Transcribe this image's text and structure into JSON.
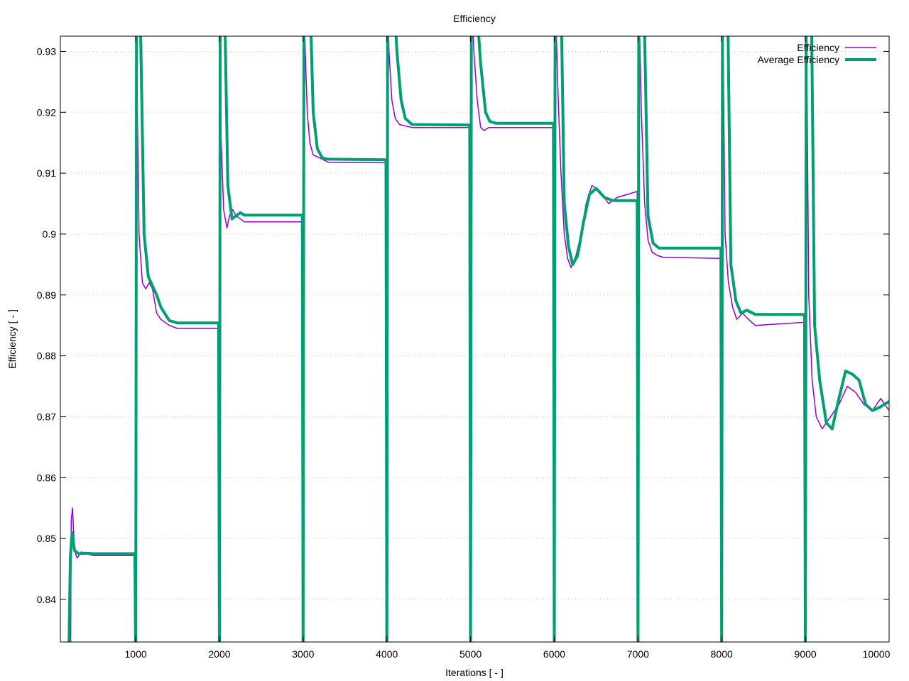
{
  "chart_data": {
    "type": "line",
    "title": "Efficiency",
    "xlabel": "Iterations [ - ]",
    "ylabel": "Efficiency [ - ]",
    "xlim": [
      100,
      10000
    ],
    "ylim": [
      0.833,
      0.9325
    ],
    "x_ticks": [
      {
        "value": 1000,
        "label": "1000"
      },
      {
        "value": 2000,
        "label": "2000"
      },
      {
        "value": 3000,
        "label": "3000"
      },
      {
        "value": 4000,
        "label": "4000"
      },
      {
        "value": 5000,
        "label": "5000"
      },
      {
        "value": 6000,
        "label": "6000"
      },
      {
        "value": 7000,
        "label": "7000"
      },
      {
        "value": 8000,
        "label": "8000"
      },
      {
        "value": 9000,
        "label": "9000"
      },
      {
        "value": 10000,
        "label": "10000"
      }
    ],
    "y_ticks": [
      {
        "value": 0.84,
        "label": "0.84"
      },
      {
        "value": 0.85,
        "label": "0.85"
      },
      {
        "value": 0.86,
        "label": "0.86"
      },
      {
        "value": 0.87,
        "label": "0.87"
      },
      {
        "value": 0.88,
        "label": "0.88"
      },
      {
        "value": 0.89,
        "label": "0.89"
      },
      {
        "value": 0.9,
        "label": "0.9"
      },
      {
        "value": 0.91,
        "label": "0.91"
      },
      {
        "value": 0.92,
        "label": "0.92"
      },
      {
        "value": 0.93,
        "label": "0.93"
      }
    ],
    "grid": true,
    "legend_position": "top-right",
    "series": [
      {
        "name": "Efficiency",
        "color": "#9400d3",
        "points": [
          [
            220,
            0.822
          ],
          [
            230,
            0.853
          ],
          [
            245,
            0.855
          ],
          [
            270,
            0.848
          ],
          [
            300,
            0.8468
          ],
          [
            350,
            0.8478
          ],
          [
            400,
            0.8475
          ],
          [
            500,
            0.8472
          ],
          [
            990,
            0.8472
          ],
          [
            1000,
            0.83
          ],
          [
            1008,
            0.945
          ],
          [
            1020,
            0.92
          ],
          [
            1040,
            0.9
          ],
          [
            1080,
            0.892
          ],
          [
            1120,
            0.891
          ],
          [
            1160,
            0.892
          ],
          [
            1200,
            0.891
          ],
          [
            1250,
            0.887
          ],
          [
            1300,
            0.886
          ],
          [
            1400,
            0.885
          ],
          [
            1500,
            0.8845
          ],
          [
            1990,
            0.8845
          ],
          [
            2000,
            0.84
          ],
          [
            2008,
            0.945
          ],
          [
            2020,
            0.916
          ],
          [
            2050,
            0.904
          ],
          [
            2090,
            0.901
          ],
          [
            2120,
            0.903
          ],
          [
            2160,
            0.904
          ],
          [
            2200,
            0.903
          ],
          [
            2300,
            0.902
          ],
          [
            2990,
            0.902
          ],
          [
            3000,
            0.835
          ],
          [
            3008,
            0.94
          ],
          [
            3025,
            0.93
          ],
          [
            3050,
            0.92
          ],
          [
            3080,
            0.915
          ],
          [
            3120,
            0.913
          ],
          [
            3200,
            0.9125
          ],
          [
            3300,
            0.9118
          ],
          [
            3990,
            0.9117
          ],
          [
            4000,
            0.86
          ],
          [
            4008,
            0.94
          ],
          [
            4025,
            0.93
          ],
          [
            4060,
            0.922
          ],
          [
            4100,
            0.919
          ],
          [
            4150,
            0.918
          ],
          [
            4300,
            0.9175
          ],
          [
            4990,
            0.9175
          ],
          [
            5000,
            0.862
          ],
          [
            5010,
            0.94
          ],
          [
            5040,
            0.93
          ],
          [
            5080,
            0.922
          ],
          [
            5120,
            0.9175
          ],
          [
            5160,
            0.917
          ],
          [
            5220,
            0.9175
          ],
          [
            5300,
            0.9175
          ],
          [
            5990,
            0.9175
          ],
          [
            6000,
            0.83
          ],
          [
            6010,
            0.94
          ],
          [
            6040,
            0.925
          ],
          [
            6080,
            0.91
          ],
          [
            6120,
            0.9
          ],
          [
            6160,
            0.896
          ],
          [
            6200,
            0.8945
          ],
          [
            6260,
            0.8965
          ],
          [
            6320,
            0.9
          ],
          [
            6380,
            0.905
          ],
          [
            6450,
            0.908
          ],
          [
            6550,
            0.907
          ],
          [
            6650,
            0.905
          ],
          [
            6750,
            0.906
          ],
          [
            6990,
            0.907
          ],
          [
            7000,
            0.872
          ],
          [
            7010,
            0.94
          ],
          [
            7040,
            0.92
          ],
          [
            7080,
            0.905
          ],
          [
            7120,
            0.899
          ],
          [
            7170,
            0.897
          ],
          [
            7230,
            0.8965
          ],
          [
            7300,
            0.8962
          ],
          [
            7990,
            0.896
          ],
          [
            8000,
            0.87
          ],
          [
            8010,
            0.94
          ],
          [
            8040,
            0.9
          ],
          [
            8080,
            0.892
          ],
          [
            8130,
            0.888
          ],
          [
            8180,
            0.886
          ],
          [
            8250,
            0.887
          ],
          [
            8320,
            0.886
          ],
          [
            8400,
            0.885
          ],
          [
            8990,
            0.8855
          ],
          [
            9000,
            0.852
          ],
          [
            9010,
            0.94
          ],
          [
            9040,
            0.89
          ],
          [
            9080,
            0.876
          ],
          [
            9130,
            0.87
          ],
          [
            9200,
            0.868
          ],
          [
            9300,
            0.87
          ],
          [
            9400,
            0.872
          ],
          [
            9500,
            0.875
          ],
          [
            9600,
            0.874
          ],
          [
            9700,
            0.872
          ],
          [
            9800,
            0.871
          ],
          [
            9900,
            0.873
          ],
          [
            10000,
            0.871
          ]
        ]
      },
      {
        "name": "Average Efficiency",
        "color": "#009e73",
        "points": [
          [
            200,
            0.83
          ],
          [
            220,
            0.847
          ],
          [
            240,
            0.851
          ],
          [
            270,
            0.848
          ],
          [
            320,
            0.8475
          ],
          [
            400,
            0.8476
          ],
          [
            500,
            0.8475
          ],
          [
            990,
            0.8475
          ],
          [
            1000,
            0.83
          ],
          [
            1010,
            0.94
          ],
          [
            1050,
            0.94
          ],
          [
            1100,
            0.9
          ],
          [
            1150,
            0.893
          ],
          [
            1200,
            0.8915
          ],
          [
            1250,
            0.89
          ],
          [
            1300,
            0.888
          ],
          [
            1400,
            0.8858
          ],
          [
            1500,
            0.8854
          ],
          [
            1990,
            0.8854
          ],
          [
            2000,
            0.83
          ],
          [
            2010,
            0.94
          ],
          [
            2060,
            0.94
          ],
          [
            2100,
            0.908
          ],
          [
            2150,
            0.9025
          ],
          [
            2200,
            0.903
          ],
          [
            2250,
            0.9035
          ],
          [
            2300,
            0.9031
          ],
          [
            2990,
            0.9031
          ],
          [
            3000,
            0.83
          ],
          [
            3010,
            0.94
          ],
          [
            3080,
            0.94
          ],
          [
            3120,
            0.92
          ],
          [
            3170,
            0.914
          ],
          [
            3230,
            0.9125
          ],
          [
            3300,
            0.9123
          ],
          [
            3990,
            0.9122
          ],
          [
            4000,
            0.83
          ],
          [
            4010,
            0.94
          ],
          [
            4080,
            0.94
          ],
          [
            4120,
            0.93
          ],
          [
            4170,
            0.922
          ],
          [
            4220,
            0.919
          ],
          [
            4300,
            0.918
          ],
          [
            4990,
            0.9179
          ],
          [
            5000,
            0.83
          ],
          [
            5010,
            0.94
          ],
          [
            5060,
            0.94
          ],
          [
            5120,
            0.928
          ],
          [
            5180,
            0.92
          ],
          [
            5230,
            0.9185
          ],
          [
            5300,
            0.9182
          ],
          [
            5990,
            0.9182
          ],
          [
            6000,
            0.83
          ],
          [
            6010,
            0.94
          ],
          [
            6080,
            0.94
          ],
          [
            6120,
            0.905
          ],
          [
            6170,
            0.898
          ],
          [
            6220,
            0.895
          ],
          [
            6280,
            0.8965
          ],
          [
            6350,
            0.902
          ],
          [
            6420,
            0.9065
          ],
          [
            6500,
            0.9075
          ],
          [
            6600,
            0.906
          ],
          [
            6700,
            0.9055
          ],
          [
            6990,
            0.9055
          ],
          [
            7000,
            0.83
          ],
          [
            7010,
            0.94
          ],
          [
            7070,
            0.94
          ],
          [
            7120,
            0.903
          ],
          [
            7180,
            0.8985
          ],
          [
            7250,
            0.8977
          ],
          [
            7990,
            0.8977
          ],
          [
            8000,
            0.83
          ],
          [
            8010,
            0.94
          ],
          [
            8070,
            0.94
          ],
          [
            8110,
            0.895
          ],
          [
            8170,
            0.889
          ],
          [
            8230,
            0.887
          ],
          [
            8300,
            0.8875
          ],
          [
            8400,
            0.8868
          ],
          [
            8990,
            0.8868
          ],
          [
            9000,
            0.83
          ],
          [
            9010,
            0.94
          ],
          [
            9070,
            0.94
          ],
          [
            9110,
            0.885
          ],
          [
            9170,
            0.876
          ],
          [
            9250,
            0.869
          ],
          [
            9320,
            0.868
          ],
          [
            9400,
            0.873
          ],
          [
            9480,
            0.8775
          ],
          [
            9560,
            0.877
          ],
          [
            9640,
            0.876
          ],
          [
            9720,
            0.872
          ],
          [
            9800,
            0.871
          ],
          [
            9880,
            0.8715
          ],
          [
            10000,
            0.8725
          ]
        ]
      }
    ]
  }
}
